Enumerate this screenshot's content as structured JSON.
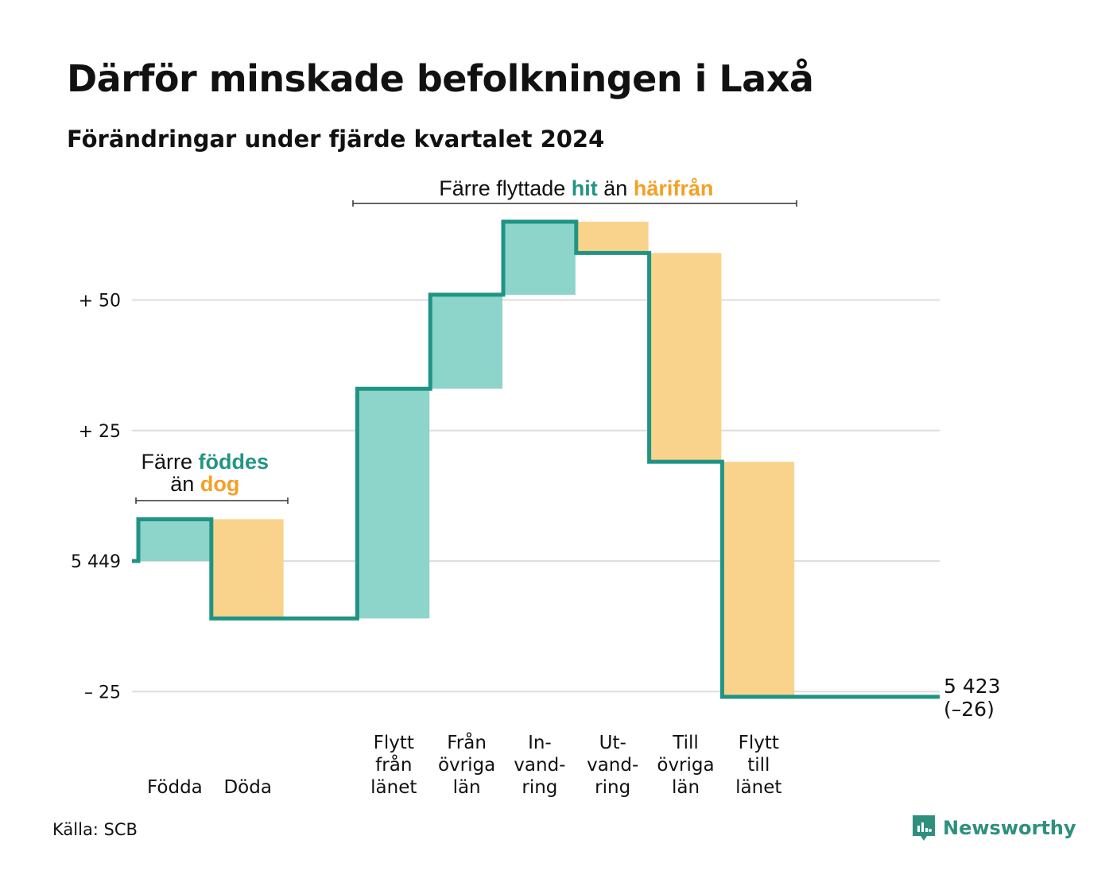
{
  "title": "Därför minskade befolkningen i Laxå",
  "subtitle": "Förändringar under fjärde kvartalet 2024",
  "source": "Källa: SCB",
  "brand": "Newsworthy",
  "colors": {
    "increase": "#8dd4ca",
    "decrease": "#f9d38c",
    "line": "#1f9484",
    "teal_text": "#239484",
    "orange_text": "#f4a025",
    "grid": "#dddddd"
  },
  "chart_data": {
    "type": "waterfall",
    "start_value": 5449,
    "end_value": 5423,
    "total_change": -26,
    "ylim": [
      -26,
      65
    ],
    "ytick_labels": [
      {
        "value": -25,
        "label": "– 25"
      },
      {
        "value": 0,
        "label": "5 449"
      },
      {
        "value": 25,
        "label": "+ 25"
      },
      {
        "value": 50,
        "label": "+ 50"
      }
    ],
    "categories": [
      {
        "label": [
          "Födda"
        ],
        "change": 8
      },
      {
        "label": [
          "Döda"
        ],
        "change": -19
      },
      {
        "label": [],
        "change": 0
      },
      {
        "label": [
          "Flytt",
          "från",
          "länet"
        ],
        "change": 44
      },
      {
        "label": [
          "Från",
          "övriga",
          "län"
        ],
        "change": 18
      },
      {
        "label": [
          "In-",
          "vand-",
          "ring"
        ],
        "change": 14
      },
      {
        "label": [
          "Ut-",
          "vand-",
          "ring"
        ],
        "change": -6
      },
      {
        "label": [
          "Till",
          "övriga",
          "län"
        ],
        "change": -40
      },
      {
        "label": [
          "Flytt",
          "till",
          "länet"
        ],
        "change": -45
      },
      {
        "label": [],
        "change": 0
      }
    ],
    "end_label": [
      "5 423",
      "(–26)"
    ],
    "annotations": [
      {
        "parts": [
          {
            "text": "Färre ",
            "style": "plain"
          },
          {
            "text": "föddes",
            "style": "teal"
          }
        ],
        "parts2": [
          {
            "text": "än ",
            "style": "plain"
          },
          {
            "text": "dog",
            "style": "orange"
          }
        ]
      },
      {
        "parts": [
          {
            "text": "Färre flyttade ",
            "style": "plain"
          },
          {
            "text": "hit",
            "style": "teal"
          },
          {
            "text": " än ",
            "style": "plain"
          },
          {
            "text": "härifrån",
            "style": "orange"
          }
        ]
      }
    ]
  }
}
